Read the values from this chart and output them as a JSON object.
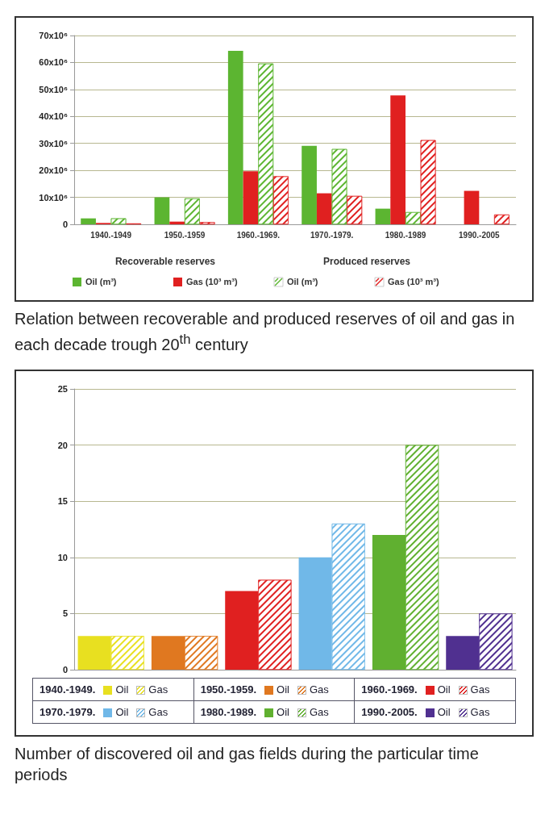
{
  "chart_data": [
    {
      "type": "bar",
      "title": "Relation between recoverable and produced reserves of oil and gas in each decade trough 20$^{th}$ century",
      "categories": [
        "1940.-1949",
        "1950.-1959",
        "1960.-1969.",
        "1970.-1979.",
        "1980.-1989",
        "1990.-2005"
      ],
      "series": [
        {
          "name": "Oil (m³)",
          "color": "#5cb531",
          "values": [
            2200000,
            10000000,
            64300000,
            29100000,
            5800000,
            null
          ]
        },
        {
          "name": "Gas (10³ m³)",
          "color": "#e02020",
          "values": [
            500000,
            1000000,
            19700000,
            11500000,
            47800000,
            12400000
          ]
        },
        {
          "name": "Oil (m³)",
          "color": "#5cb531",
          "values": [
            2200000,
            9600000,
            59600000,
            27900000,
            4500000,
            null
          ]
        },
        {
          "name": "Gas (10³ m³)",
          "color": "#e02020",
          "values": [
            300000,
            800000,
            17800000,
            10500000,
            31200000,
            3600000
          ]
        }
      ],
      "annotations": [
        "Recoverable reserves",
        "Produced reserves"
      ],
      "ylim": [
        0,
        70000000
      ],
      "yticks": [
        0,
        {
          "value": 10000000,
          "label": "10x10⁶"
        },
        {
          "value": 20000000,
          "label": "20x10⁶"
        },
        {
          "value": 30000000,
          "label": "30x10⁶"
        },
        {
          "value": 40000000,
          "label": "40x10⁶"
        },
        {
          "value": 50000000,
          "label": "50x10⁶"
        },
        {
          "value": 60000000,
          "label": "60x10⁶"
        },
        {
          "value": 70000000,
          "label": "70x10⁶"
        }
      ],
      "grid": "y",
      "legend": "bottom"
    },
    {
      "type": "bar",
      "title": "Number of discovered oil and gas fields during the particular time periods",
      "categories": [
        "1940.-1949.",
        "1950.-1959.",
        "1960.-1969.",
        "1970.-1979.",
        "1980.-1989.",
        "1990.-2005."
      ],
      "series": [
        {
          "name": "Oil",
          "colors": [
            "#e8e020",
            "#e07820",
            "#e02020",
            "#70b8e8",
            "#60b030",
            "#503090"
          ],
          "values": [
            3,
            3,
            7,
            10,
            12,
            3
          ]
        },
        {
          "name": "Gas",
          "colors": [
            "#e8e020",
            "#e07820",
            "#e02020",
            "#70b8e8",
            "#60b030",
            "#503090"
          ],
          "values": [
            3,
            3,
            8,
            13,
            20,
            5
          ]
        }
      ],
      "ylim": [
        0,
        25
      ],
      "yticks": [
        0,
        5,
        10,
        15,
        20,
        25
      ],
      "grid": "y",
      "legend": "bottom",
      "tick_labels": "y"
    }
  ]
}
